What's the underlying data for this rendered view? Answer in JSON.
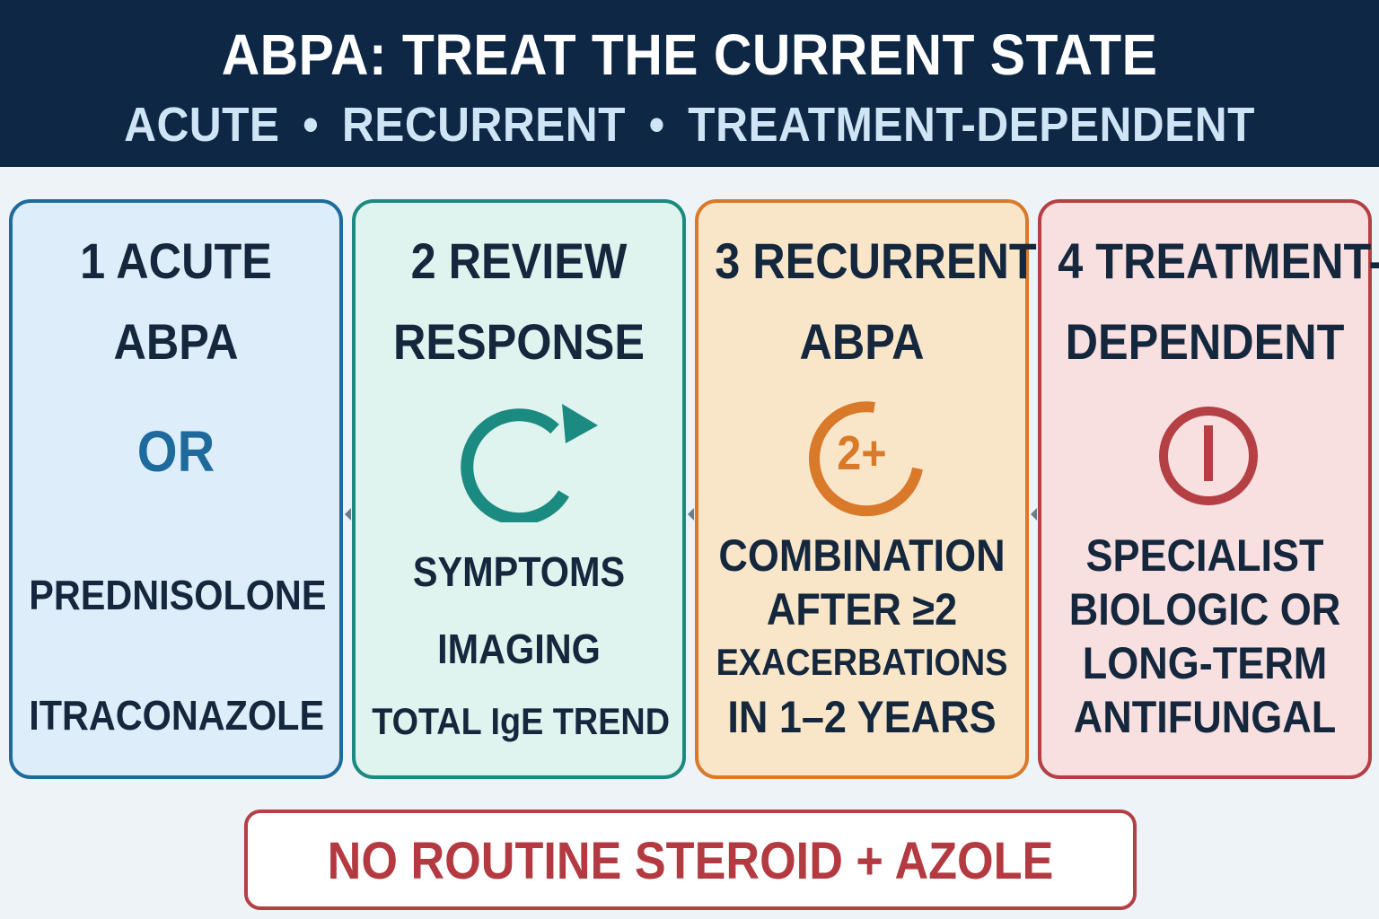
{
  "header": {
    "title": "ABPA: TREAT THE CURRENT STATE",
    "subtitle_items": [
      "ACUTE",
      "RECURRENT",
      "TREATMENT-DEPENDENT"
    ],
    "separator": "•"
  },
  "steps": [
    {
      "heading_1": "1  ACUTE",
      "heading_2": "ABPA",
      "connector": "OR",
      "option_1": "PREDNISOLONE",
      "option_2": "ITRACONAZOLE",
      "color": "#1e6a9c"
    },
    {
      "heading_1": "2  REVIEW",
      "heading_2": "RESPONSE",
      "icon": "cycle-arrow-icon",
      "line_1": "SYMPTOMS",
      "line_2": "IMAGING",
      "line_3": "TOTAL IgE TREND",
      "color": "#1b8a80"
    },
    {
      "heading_1": "3  RECURRENT",
      "heading_2": "ABPA",
      "icon": "counter-icon",
      "icon_label": "2+",
      "line_1": "COMBINATION",
      "line_2": "AFTER ≥2",
      "line_3": "EXACERBATIONS",
      "line_4": "IN 1–2 YEARS",
      "color": "#d9792a"
    },
    {
      "heading_1": "4  TREATMENT-",
      "heading_2": "DEPENDENT",
      "icon": "power-stop-icon",
      "line_1": "SPECIALIST",
      "line_2": "BIOLOGIC OR",
      "line_3": "LONG-TERM",
      "line_4": "ANTIFUNGAL",
      "color": "#b44045"
    }
  ],
  "footer": {
    "text": "NO ROUTINE STEROID + AZOLE"
  }
}
